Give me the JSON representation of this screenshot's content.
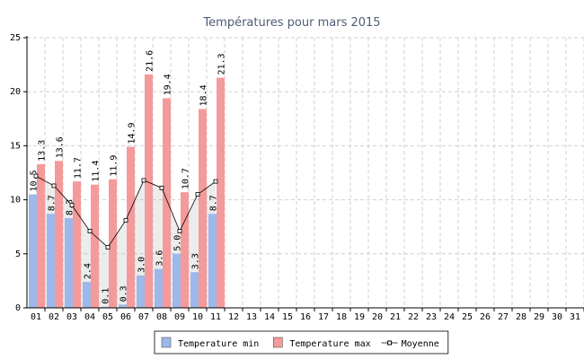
{
  "chart_data": {
    "type": "bar",
    "title": "Températures pour mars 2015",
    "categories": [
      "01",
      "02",
      "03",
      "04",
      "05",
      "06",
      "07",
      "08",
      "09",
      "10",
      "11",
      "12",
      "13",
      "14",
      "15",
      "16",
      "17",
      "18",
      "19",
      "20",
      "21",
      "22",
      "23",
      "24",
      "25",
      "26",
      "27",
      "28",
      "29",
      "30",
      "31"
    ],
    "series": [
      {
        "name": "Temperature min",
        "color": "#9db8ea",
        "values": [
          10.5,
          8.7,
          8.3,
          2.4,
          0.1,
          0.3,
          3.0,
          3.6,
          5.0,
          3.3,
          8.7,
          null,
          null,
          null,
          null,
          null,
          null,
          null,
          null,
          null,
          null,
          null,
          null,
          null,
          null,
          null,
          null,
          null,
          null,
          null,
          null
        ],
        "value_labels": [
          "10.5",
          "8.7",
          "8.3",
          "2.4",
          "0.1",
          "0.3",
          "3.0",
          "3.6",
          "5.0",
          "3.3",
          "8.7",
          null,
          null,
          null,
          null,
          null,
          null,
          null,
          null,
          null,
          null,
          null,
          null,
          null,
          null,
          null,
          null,
          null,
          null,
          null,
          null
        ]
      },
      {
        "name": "Temperature max",
        "color": "#f59a9a",
        "values": [
          13.3,
          13.6,
          11.7,
          11.4,
          11.9,
          14.9,
          21.6,
          19.4,
          10.7,
          18.4,
          21.3,
          null,
          null,
          null,
          null,
          null,
          null,
          null,
          null,
          null,
          null,
          null,
          null,
          null,
          null,
          null,
          null,
          null,
          null,
          null,
          null
        ],
        "value_labels": [
          "13.3",
          "13.6",
          "11.7",
          "11.4",
          "11.9",
          "14.9",
          "21.6",
          "19.4",
          "10.7",
          "18.4",
          "21.3",
          null,
          null,
          null,
          null,
          null,
          null,
          null,
          null,
          null,
          null,
          null,
          null,
          null,
          null,
          null,
          null,
          null,
          null,
          null,
          null
        ]
      },
      {
        "name": "Moyenne",
        "type": "line",
        "color": "#000000",
        "values": [
          12.2,
          11.3,
          9.5,
          7.1,
          5.6,
          8.1,
          11.8,
          11.1,
          7.1,
          10.5,
          11.7,
          null,
          null,
          null,
          null,
          null,
          null,
          null,
          null,
          null,
          null,
          null,
          null,
          null,
          null,
          null,
          null,
          null,
          null,
          null,
          null
        ]
      }
    ],
    "ylim": [
      0,
      25
    ],
    "yticks": [
      0,
      5,
      10,
      15,
      20,
      25
    ],
    "grid": true,
    "legend": "bottom"
  }
}
